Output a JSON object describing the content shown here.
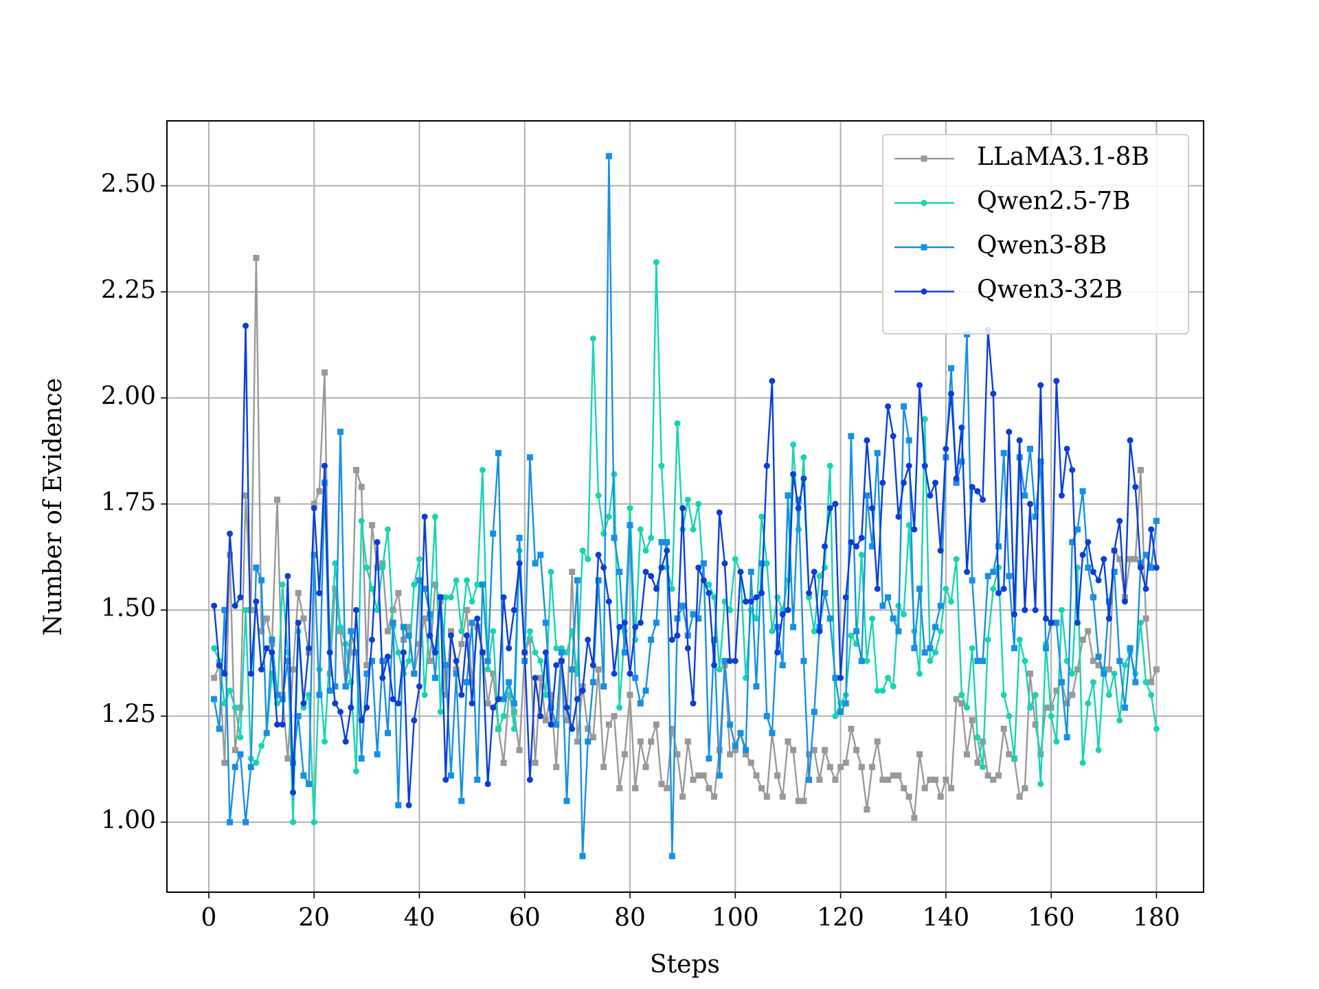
{
  "chart_data": {
    "type": "line",
    "xlabel": "Steps",
    "ylabel": "Number of Evidence",
    "x": [
      1,
      2,
      3,
      4,
      5,
      6,
      7,
      8,
      9,
      10,
      11,
      12,
      13,
      14,
      15,
      16,
      17,
      18,
      19,
      20,
      21,
      22,
      23,
      24,
      25,
      26,
      27,
      28,
      29,
      30,
      31,
      32,
      33,
      34,
      35,
      36,
      37,
      38,
      39,
      40,
      41,
      42,
      43,
      44,
      45,
      46,
      47,
      48,
      49,
      50,
      51,
      52,
      53,
      54,
      55,
      56,
      57,
      58,
      59,
      60,
      61,
      62,
      63,
      64,
      65,
      66,
      67,
      68,
      69,
      70,
      71,
      72,
      73,
      74,
      75,
      76,
      77,
      78,
      79,
      80,
      81,
      82,
      83,
      84,
      85,
      86,
      87,
      88,
      89,
      90,
      91,
      92,
      93,
      94,
      95,
      96,
      97,
      98,
      99,
      100,
      101,
      102,
      103,
      104,
      105,
      106,
      107,
      108,
      109,
      110,
      111,
      112,
      113,
      114,
      115,
      116,
      117,
      118,
      119,
      120,
      121,
      122,
      123,
      124,
      125,
      126,
      127,
      128,
      129,
      130,
      131,
      132,
      133,
      134,
      135,
      136,
      137,
      138,
      139,
      140,
      141,
      142,
      143,
      144,
      145,
      146,
      147,
      148,
      149,
      150,
      151,
      152,
      153,
      154,
      155,
      156,
      157,
      158,
      159,
      160,
      161,
      162,
      163,
      164,
      165,
      166,
      167,
      168,
      169,
      170,
      171,
      172,
      173,
      174,
      175,
      176,
      177,
      178,
      179,
      180
    ],
    "series": [
      {
        "name": "LLaMA3.1-8B",
        "color": "#999999",
        "marker": "square",
        "values": [
          1.34,
          1.37,
          1.14,
          1.63,
          1.17,
          1.27,
          1.77,
          1.5,
          2.33,
          1.45,
          1.48,
          1.42,
          1.76,
          1.3,
          1.15,
          1.36,
          1.54,
          1.48,
          1.4,
          1.75,
          1.78,
          2.06,
          1.35,
          1.55,
          1.45,
          1.32,
          1.4,
          1.83,
          1.79,
          1.37,
          1.7,
          1.6,
          1.61,
          1.45,
          1.5,
          1.54,
          1.43,
          1.46,
          1.35,
          1.42,
          1.48,
          1.38,
          1.56,
          1.52,
          1.3,
          1.45,
          1.36,
          1.42,
          1.5,
          1.33,
          1.46,
          1.4,
          1.28,
          1.35,
          1.22,
          1.14,
          1.3,
          1.26,
          1.17,
          1.4,
          1.43,
          1.14,
          1.34,
          1.24,
          1.3,
          1.13,
          1.38,
          1.24,
          1.59,
          1.19,
          1.32,
          1.22,
          1.2,
          1.36,
          1.13,
          1.23,
          1.25,
          1.08,
          1.16,
          1.3,
          1.08,
          1.19,
          1.13,
          1.19,
          1.23,
          1.09,
          1.08,
          1.22,
          1.16,
          1.06,
          1.19,
          1.1,
          1.11,
          1.11,
          1.08,
          1.06,
          1.17,
          1.37,
          1.16,
          1.17,
          1.21,
          1.16,
          1.14,
          1.11,
          1.08,
          1.06,
          1.21,
          1.11,
          1.06,
          1.19,
          1.17,
          1.05,
          1.05,
          1.16,
          1.17,
          1.1,
          1.17,
          1.13,
          1.1,
          1.13,
          1.14,
          1.22,
          1.17,
          1.13,
          1.03,
          1.13,
          1.19,
          1.1,
          1.1,
          1.11,
          1.11,
          1.08,
          1.06,
          1.01,
          1.16,
          1.08,
          1.1,
          1.1,
          1.06,
          1.1,
          1.08,
          1.29,
          1.28,
          1.16,
          1.24,
          1.14,
          1.19,
          1.11,
          1.1,
          1.11,
          1.22,
          1.16,
          1.15,
          1.06,
          1.08,
          1.35,
          1.23,
          1.16,
          1.27,
          1.27,
          1.31,
          1.33,
          1.28,
          1.3,
          1.36,
          1.43,
          1.45,
          1.38,
          1.37,
          1.35,
          1.36,
          1.64,
          1.62,
          1.53,
          1.62,
          1.62,
          1.83,
          1.48,
          1.33,
          1.36
        ]
      },
      {
        "name": "Qwen2.5-7B",
        "color": "#18d4b2",
        "marker": "circle",
        "values": [
          1.41,
          1.38,
          1.28,
          1.31,
          1.27,
          1.2,
          1.5,
          1.15,
          1.14,
          1.18,
          1.21,
          1.35,
          1.28,
          1.56,
          1.4,
          1.0,
          1.45,
          1.27,
          1.3,
          1.0,
          1.36,
          1.19,
          1.4,
          1.61,
          1.46,
          1.42,
          1.33,
          1.12,
          1.71,
          1.6,
          1.55,
          1.5,
          1.6,
          1.69,
          1.46,
          1.4,
          1.35,
          1.38,
          1.56,
          1.62,
          1.3,
          1.48,
          1.72,
          1.26,
          1.53,
          1.53,
          1.57,
          1.45,
          1.57,
          1.52,
          1.56,
          1.83,
          1.36,
          1.45,
          1.22,
          1.25,
          1.33,
          1.22,
          1.64,
          1.4,
          1.45,
          1.4,
          1.38,
          1.3,
          1.59,
          1.41,
          1.41,
          1.4,
          1.45,
          1.35,
          1.64,
          1.62,
          2.14,
          1.77,
          1.68,
          1.72,
          1.82,
          1.27,
          1.45,
          1.74,
          1.43,
          1.69,
          1.64,
          1.67,
          2.32,
          1.84,
          1.6,
          1.55,
          1.94,
          1.69,
          1.76,
          1.69,
          1.75,
          1.57,
          1.56,
          1.53,
          1.36,
          1.52,
          1.5,
          1.62,
          1.59,
          1.34,
          1.5,
          1.48,
          1.72,
          1.61,
          1.45,
          1.53,
          1.5,
          1.57,
          1.89,
          1.69,
          1.86,
          1.53,
          1.45,
          1.58,
          1.6,
          1.84,
          1.25,
          1.28,
          1.3,
          1.44,
          1.42,
          1.63,
          1.38,
          1.48,
          1.31,
          1.31,
          1.34,
          1.32,
          1.51,
          1.49,
          1.7,
          1.45,
          1.35,
          1.95,
          1.38,
          1.4,
          1.45,
          1.55,
          1.52,
          1.62,
          1.3,
          1.27,
          1.41,
          1.2,
          1.13,
          1.43,
          1.55,
          1.6,
          1.3,
          1.25,
          1.15,
          1.43,
          1.38,
          1.27,
          1.3,
          1.09,
          1.42,
          1.25,
          1.19,
          1.5,
          1.38,
          1.35,
          1.6,
          1.14,
          1.28,
          1.33,
          1.17,
          1.36,
          1.3,
          1.35,
          1.24,
          1.37,
          1.4,
          1.35,
          1.47,
          1.33,
          1.3,
          1.22
        ]
      },
      {
        "name": "Qwen3-8B",
        "color": "#1790e4",
        "marker": "square",
        "values": [
          1.29,
          1.22,
          1.5,
          1.0,
          1.13,
          1.16,
          1.0,
          1.13,
          1.6,
          1.57,
          1.21,
          1.43,
          1.3,
          1.29,
          1.38,
          1.14,
          1.25,
          1.11,
          1.09,
          1.63,
          1.3,
          1.8,
          1.31,
          1.32,
          1.92,
          1.32,
          1.45,
          1.4,
          1.15,
          1.35,
          1.38,
          1.16,
          1.38,
          1.21,
          1.47,
          1.04,
          1.46,
          1.44,
          1.35,
          1.57,
          1.55,
          1.49,
          1.34,
          1.53,
          1.37,
          1.11,
          1.35,
          1.05,
          1.33,
          1.47,
          1.1,
          1.56,
          1.38,
          1.68,
          1.87,
          1.29,
          1.33,
          1.28,
          1.67,
          1.38,
          1.86,
          1.61,
          1.63,
          1.47,
          1.27,
          1.23,
          1.4,
          1.05,
          1.36,
          1.57,
          0.92,
          1.19,
          1.33,
          1.57,
          1.32,
          2.57,
          1.67,
          1.59,
          1.4,
          1.7,
          1.34,
          1.28,
          1.31,
          1.43,
          1.47,
          1.66,
          1.66,
          0.92,
          1.48,
          1.51,
          1.44,
          1.49,
          1.48,
          1.61,
          1.15,
          1.43,
          1.11,
          1.38,
          1.23,
          1.18,
          1.21,
          1.17,
          1.59,
          1.32,
          1.61,
          1.25,
          1.21,
          1.46,
          1.37,
          1.77,
          1.46,
          1.76,
          1.38,
          1.1,
          1.26,
          1.46,
          1.54,
          1.48,
          1.34,
          1.26,
          1.28,
          1.91,
          1.45,
          1.38,
          1.77,
          1.65,
          1.87,
          1.51,
          1.53,
          1.48,
          1.45,
          1.98,
          1.9,
          1.41,
          1.55,
          1.4,
          1.41,
          1.46,
          1.51,
          1.86,
          2.07,
          1.8,
          1.85,
          2.15,
          1.57,
          1.38,
          1.38,
          1.58,
          1.59,
          1.65,
          1.87,
          1.58,
          1.41,
          1.86,
          1.77,
          1.88,
          1.72,
          1.85,
          1.41,
          1.47,
          1.47,
          1.33,
          1.2,
          1.66,
          1.69,
          1.78,
          1.6,
          1.53,
          1.39,
          1.35,
          1.52,
          1.59,
          1.38,
          1.27,
          1.41,
          1.33,
          1.61,
          1.63,
          1.6,
          1.71
        ]
      },
      {
        "name": "Qwen3-32B",
        "color": "#0b3ed8",
        "marker": "circle",
        "values": [
          1.51,
          1.37,
          1.35,
          1.68,
          1.51,
          1.53,
          2.17,
          1.35,
          1.52,
          1.36,
          1.41,
          1.4,
          1.23,
          1.23,
          1.58,
          1.07,
          1.47,
          1.28,
          1.41,
          1.74,
          1.54,
          1.84,
          1.4,
          1.28,
          1.26,
          1.19,
          1.27,
          1.5,
          1.24,
          1.27,
          1.43,
          1.66,
          1.34,
          1.39,
          1.29,
          1.28,
          1.4,
          1.04,
          1.24,
          1.32,
          1.72,
          1.44,
          1.4,
          1.53,
          1.1,
          1.44,
          1.38,
          1.3,
          1.44,
          1.28,
          1.48,
          1.4,
          1.09,
          1.27,
          1.29,
          1.53,
          1.41,
          1.5,
          1.61,
          1.4,
          1.1,
          1.34,
          1.25,
          1.4,
          1.23,
          1.37,
          1.38,
          1.27,
          1.22,
          1.29,
          1.31,
          1.43,
          1.37,
          1.63,
          1.6,
          1.52,
          1.35,
          1.46,
          1.47,
          1.35,
          1.46,
          1.47,
          1.59,
          1.58,
          1.55,
          1.6,
          1.64,
          1.43,
          1.44,
          1.74,
          1.41,
          1.28,
          1.6,
          1.57,
          1.54,
          1.37,
          1.73,
          1.61,
          1.38,
          1.38,
          1.59,
          1.52,
          1.52,
          1.53,
          1.54,
          1.84,
          2.04,
          1.4,
          1.49,
          1.5,
          1.82,
          1.74,
          1.81,
          1.54,
          1.59,
          1.45,
          1.65,
          1.74,
          1.75,
          1.34,
          1.53,
          1.66,
          1.65,
          1.67,
          1.9,
          1.74,
          1.55,
          1.8,
          1.98,
          1.91,
          1.72,
          1.8,
          1.84,
          1.69,
          2.03,
          1.84,
          1.77,
          1.8,
          1.64,
          1.88,
          2.01,
          1.81,
          1.93,
          1.59,
          1.79,
          1.78,
          1.76,
          2.16,
          2.01,
          1.54,
          1.55,
          1.92,
          1.49,
          1.9,
          1.5,
          1.75,
          1.5,
          2.03,
          1.48,
          1.47,
          2.04,
          1.77,
          1.88,
          1.83,
          1.47,
          1.63,
          1.66,
          1.59,
          1.57,
          1.62,
          1.48,
          1.64,
          1.71,
          1.52,
          1.9,
          1.79,
          1.6,
          1.55,
          1.69,
          1.6
        ]
      }
    ],
    "xlim": [
      -7.95,
      188.95
    ],
    "ylim": [
      0.835,
      2.653
    ],
    "xticks": [
      0,
      20,
      40,
      60,
      80,
      100,
      120,
      140,
      160,
      180
    ],
    "yticks": [
      {
        "value": 1,
        "label": "1.00"
      },
      {
        "value": 1.25,
        "label": "1.25"
      },
      {
        "value": 1.5,
        "label": "1.50"
      },
      {
        "value": 1.75,
        "label": "1.75"
      },
      {
        "value": 2,
        "label": "2.00"
      },
      {
        "value": 2.25,
        "label": "2.25"
      },
      {
        "value": 2.5,
        "label": "2.50"
      }
    ],
    "grid": true,
    "legend": "upper right"
  }
}
